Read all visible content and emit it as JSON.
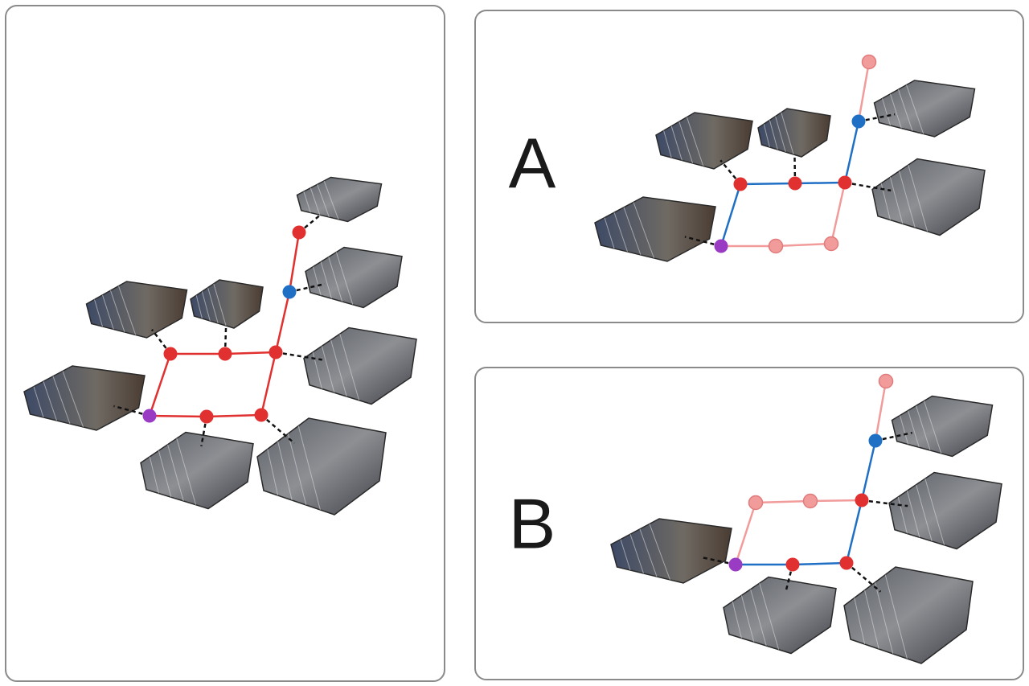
{
  "panels": {
    "a": {
      "label": "A"
    },
    "b": {
      "label": "B"
    }
  }
}
